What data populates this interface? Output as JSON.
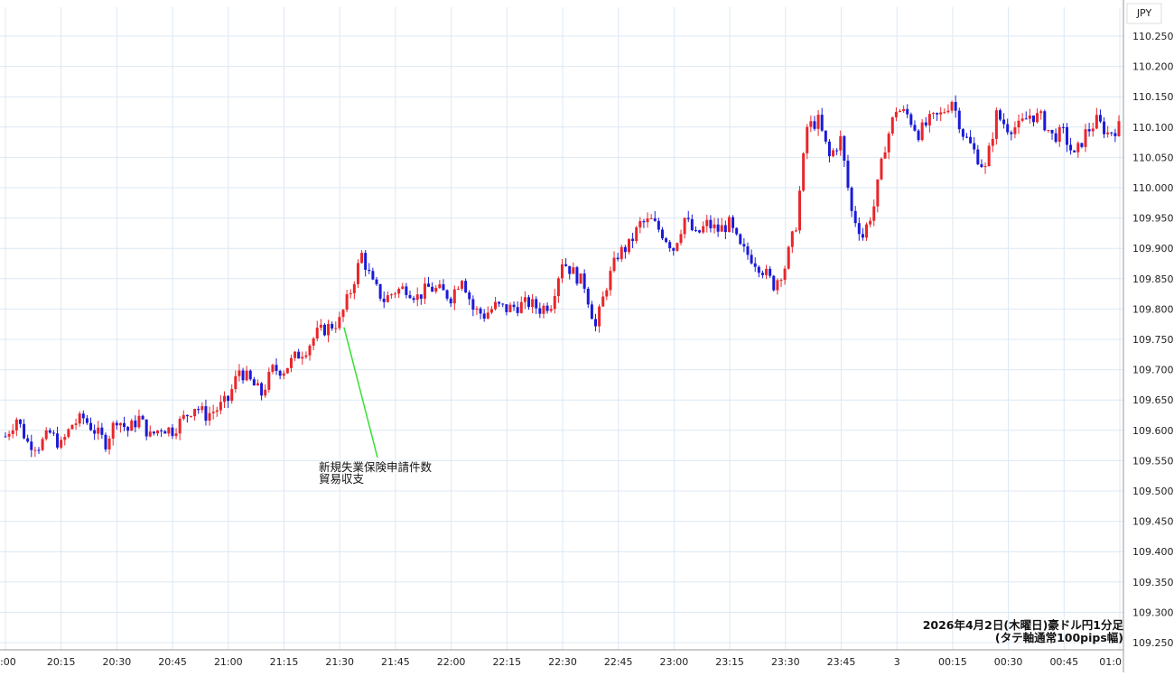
{
  "currency_label": "JPY",
  "annotation_lines": [
    "新規失業保険申請件数",
    "貿易収支"
  ],
  "caption": {
    "line1": "2026年4月2日(木曜日)豪ドル円1分足",
    "line2": "(タテ軸通常100pips幅)"
  },
  "colors": {
    "up": "#e8262b",
    "down": "#1a1ad8",
    "grid": "#dce8f4",
    "axis": "#999999",
    "annotation_line": "#33e033"
  },
  "chart_data": {
    "type": "candlestick",
    "grid": true,
    "ylim": [
      109.25,
      110.25
    ],
    "yticks": [
      "110.250",
      "110.200",
      "110.150",
      "110.100",
      "110.050",
      "110.000",
      "109.950",
      "109.900",
      "109.850",
      "109.800",
      "109.750",
      "109.700",
      "109.650",
      "109.600",
      "109.550",
      "109.500",
      "109.450",
      "109.400",
      "109.350",
      "109.300",
      "109.250"
    ],
    "xticks": [
      ":00",
      "20:15",
      "20:30",
      "20:45",
      "21:00",
      "21:15",
      "21:30",
      "21:45",
      "22:00",
      "22:15",
      "22:30",
      "22:45",
      "23:00",
      "23:15",
      "23:30",
      "23:45",
      "3",
      "00:15",
      "00:30",
      "00:45",
      "01:0"
    ],
    "annotation_time": "21:30",
    "close_path": [
      [
        "20:00",
        109.59
      ],
      [
        "20:03",
        109.62
      ],
      [
        "20:06",
        109.58
      ],
      [
        "20:09",
        109.575
      ],
      [
        "20:12",
        109.595
      ],
      [
        "20:15",
        109.575
      ],
      [
        "20:18",
        109.61
      ],
      [
        "20:21",
        109.62
      ],
      [
        "20:24",
        109.6
      ],
      [
        "20:27",
        109.58
      ],
      [
        "20:30",
        109.62
      ],
      [
        "20:33",
        109.6
      ],
      [
        "20:36",
        109.62
      ],
      [
        "20:39",
        109.59
      ],
      [
        "20:42",
        109.605
      ],
      [
        "20:45",
        109.6
      ],
      [
        "20:48",
        109.62
      ],
      [
        "20:51",
        109.64
      ],
      [
        "20:54",
        109.625
      ],
      [
        "20:57",
        109.635
      ],
      [
        "21:00",
        109.65
      ],
      [
        "21:03",
        109.7
      ],
      [
        "21:06",
        109.68
      ],
      [
        "21:09",
        109.66
      ],
      [
        "21:12",
        109.7
      ],
      [
        "21:15",
        109.7
      ],
      [
        "21:18",
        109.72
      ],
      [
        "21:21",
        109.735
      ],
      [
        "21:24",
        109.76
      ],
      [
        "21:27",
        109.77
      ],
      [
        "21:30",
        109.78
      ],
      [
        "21:33",
        109.83
      ],
      [
        "21:36",
        109.89
      ],
      [
        "21:39",
        109.84
      ],
      [
        "21:42",
        109.815
      ],
      [
        "21:45",
        109.83
      ],
      [
        "21:48",
        109.835
      ],
      [
        "21:51",
        109.82
      ],
      [
        "21:54",
        109.835
      ],
      [
        "21:57",
        109.83
      ],
      [
        "22:00",
        109.82
      ],
      [
        "22:03",
        109.855
      ],
      [
        "22:06",
        109.8
      ],
      [
        "22:09",
        109.79
      ],
      [
        "22:12",
        109.805
      ],
      [
        "22:15",
        109.8
      ],
      [
        "22:18",
        109.805
      ],
      [
        "22:21",
        109.81
      ],
      [
        "22:24",
        109.8
      ],
      [
        "22:27",
        109.81
      ],
      [
        "22:30",
        109.88
      ],
      [
        "22:33",
        109.86
      ],
      [
        "22:36",
        109.84
      ],
      [
        "22:39",
        109.77
      ],
      [
        "22:42",
        109.84
      ],
      [
        "22:45",
        109.89
      ],
      [
        "22:48",
        109.905
      ],
      [
        "22:51",
        109.94
      ],
      [
        "22:54",
        109.945
      ],
      [
        "22:57",
        109.925
      ],
      [
        "23:00",
        109.9
      ],
      [
        "23:03",
        109.95
      ],
      [
        "23:06",
        109.92
      ],
      [
        "23:09",
        109.94
      ],
      [
        "23:12",
        109.93
      ],
      [
        "23:15",
        109.94
      ],
      [
        "23:18",
        109.9
      ],
      [
        "23:21",
        109.885
      ],
      [
        "23:24",
        109.865
      ],
      [
        "23:27",
        109.84
      ],
      [
        "23:30",
        109.87
      ],
      [
        "23:33",
        109.94
      ],
      [
        "23:36",
        110.1
      ],
      [
        "23:39",
        110.11
      ],
      [
        "23:42",
        110.05
      ],
      [
        "23:45",
        110.08
      ],
      [
        "23:48",
        109.96
      ],
      [
        "23:51",
        109.92
      ],
      [
        "23:54",
        109.97
      ],
      [
        "23:57",
        110.07
      ],
      [
        "24:00",
        110.13
      ],
      [
        "24:03",
        110.12
      ],
      [
        "24:06",
        110.09
      ],
      [
        "24:09",
        110.11
      ],
      [
        "24:12",
        110.12
      ],
      [
        "24:15",
        110.145
      ],
      [
        "24:18",
        110.09
      ],
      [
        "24:21",
        110.06
      ],
      [
        "24:24",
        110.03
      ],
      [
        "24:27",
        110.12
      ],
      [
        "24:30",
        110.1
      ],
      [
        "24:33",
        110.1
      ],
      [
        "24:36",
        110.12
      ],
      [
        "24:39",
        110.115
      ],
      [
        "24:42",
        110.085
      ],
      [
        "24:45",
        110.09
      ],
      [
        "24:48",
        110.05
      ],
      [
        "24:51",
        110.09
      ],
      [
        "24:54",
        110.11
      ],
      [
        "24:57",
        110.09
      ],
      [
        "25:00",
        110.1
      ]
    ]
  }
}
